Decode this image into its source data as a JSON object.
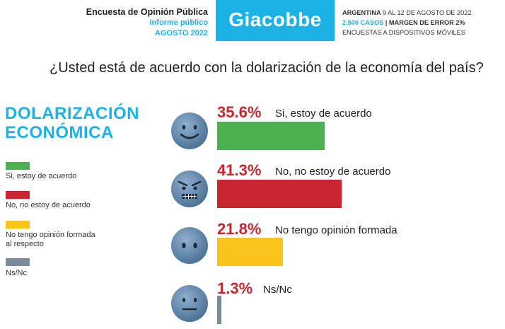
{
  "header": {
    "survey_line": "Encuesta de Opinión Pública",
    "report_line": "Informe público",
    "date_line": "AGOSTO 2022",
    "brand": "Giacobbe",
    "country": "ARGENTINA",
    "field_dates": "9 AL 12 DE AGOSTO DE 2022",
    "cases": "2.500 CASOS",
    "error": "| MARGEN DE ERROR 2%",
    "method": "ENCUESTAS A DISPOSITIVOS MÓVILES"
  },
  "question": "¿Usted está de acuerdo con la dolarización de la economía del país?",
  "title_line1": "DOLARIZACIÓN",
  "title_line2": "ECONÓMICA",
  "legend": [
    {
      "label": "Si, estoy de acuerdo",
      "color": "#4caf50"
    },
    {
      "label": "No, no estoy de acuerdo",
      "color": "#c8262e"
    },
    {
      "label": "No tengo opinión formada",
      "label2": "al respecto",
      "color": "#f9c41c"
    },
    {
      "label": "Ns/Nc",
      "color": "#7a8a99"
    }
  ],
  "chart_data": {
    "type": "bar",
    "categories": [
      "Si, estoy de acuerdo",
      "No, no estoy de acuerdo",
      "No tengo opinión formada",
      "Ns/Nc"
    ],
    "values": [
      35.6,
      41.3,
      21.8,
      1.3
    ],
    "value_labels": [
      "35.6%",
      "41.3%",
      "21.8%",
      "1.3%"
    ],
    "colors": [
      "#4caf50",
      "#c8262e",
      "#f9c41c",
      "#7a8a99"
    ],
    "orientation": "horizontal",
    "icons": [
      "smile-face-icon",
      "angry-face-icon",
      "neutral-face-icon",
      "flat-mouth-face-icon"
    ]
  }
}
